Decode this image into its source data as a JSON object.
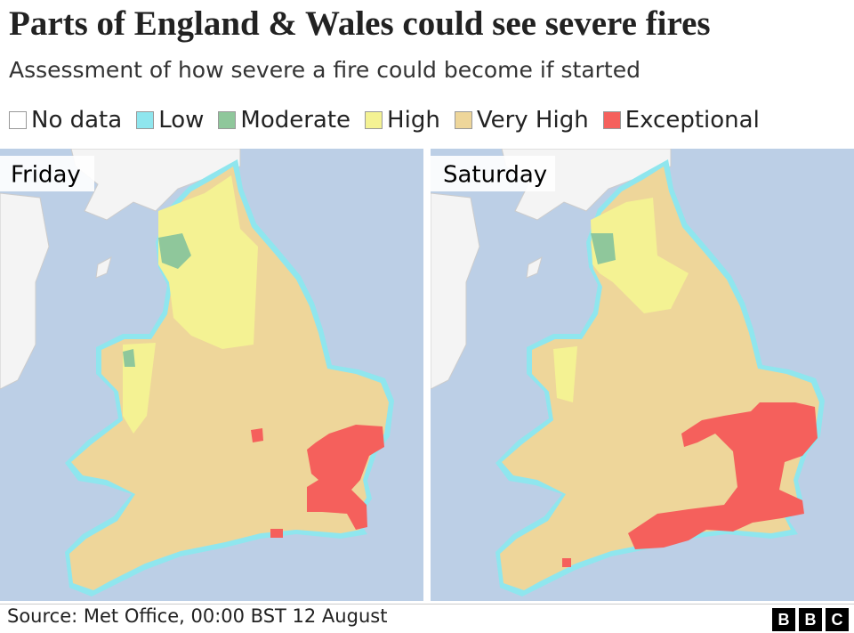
{
  "header": {
    "title": "Parts of England & Wales could see severe fires",
    "subtitle": "Assessment of how severe a fire could become if started"
  },
  "legend": [
    {
      "label": "No data",
      "color": "#ffffff"
    },
    {
      "label": "Low",
      "color": "#8fe6ee"
    },
    {
      "label": "Moderate",
      "color": "#8fc79b"
    },
    {
      "label": "High",
      "color": "#f4f293"
    },
    {
      "label": "Very High",
      "color": "#eed69a"
    },
    {
      "label": "Exceptional",
      "color": "#f5605c"
    }
  ],
  "panels": [
    {
      "label": "Friday"
    },
    {
      "label": "Saturday"
    }
  ],
  "footer": {
    "source": "Source: Met Office, 00:00 BST 12 August",
    "logo": [
      "B",
      "B",
      "C"
    ]
  }
}
